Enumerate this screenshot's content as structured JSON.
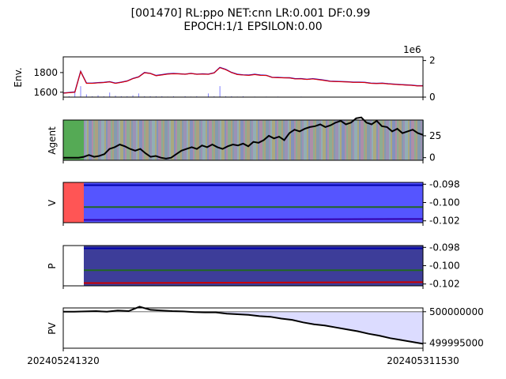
{
  "chart_data": {
    "type": "line",
    "title": "[001470] RL:ppo NET:cnn LR:0.001 DF:0.99",
    "subtitle": "EPOCH:1/1 EPSILON:0.00",
    "x_start_label": "202405241320",
    "x_end_label": "202405311530",
    "panels": [
      {
        "name": "env",
        "ylabel": "Env.",
        "left_ticks": [
          "1800",
          "1600"
        ],
        "right_ticks": [
          "2",
          "0"
        ],
        "right_exponent": "1e6",
        "series": [
          {
            "name": "price",
            "color": "#dd0000",
            "values": [
              1590,
              1595,
              1600,
              1810,
              1690,
              1690,
              1695,
              1698,
              1705,
              1690,
              1700,
              1712,
              1738,
              1755,
              1798,
              1790,
              1768,
              1776,
              1785,
              1788,
              1786,
              1782,
              1790,
              1782,
              1784,
              1782,
              1796,
              1850,
              1830,
              1800,
              1780,
              1775,
              1772,
              1780,
              1772,
              1770,
              1750,
              1748,
              1746,
              1745,
              1735,
              1736,
              1730,
              1735,
              1728,
              1720,
              1710,
              1708,
              1706,
              1704,
              1700,
              1700,
              1698,
              1690,
              1688,
              1690,
              1684,
              1680,
              1676,
              1673,
              1670,
              1664,
              1664
            ]
          },
          {
            "name": "volume",
            "color": "#8080ff",
            "values": [
              0.1,
              0.05,
              0.3,
              0.6,
              0.15,
              0.05,
              0.1,
              0.05,
              0.25,
              0.08,
              0.05,
              0.05,
              0.1,
              0.2,
              0.05,
              0.05,
              0.05,
              0.05,
              0.03,
              0.05,
              0.02,
              0.05,
              0.03,
              0.05,
              0.02,
              0.2,
              0.05,
              0.6,
              0.05,
              0.05,
              0.03,
              0.05,
              0.02,
              0.03,
              0.02,
              0.03,
              0.02,
              0.03,
              0.02,
              0.02,
              0.02,
              0.03,
              0.02,
              0.02,
              0.02,
              0.02,
              0.02,
              0.02,
              0.02,
              0.02,
              0.02,
              0.02,
              0.02,
              0.02,
              0.02,
              0.02,
              0.02,
              0.02,
              0.02,
              0.02,
              0.02,
              0.02,
              0.02
            ]
          }
        ],
        "ylim_left": [
          1550,
          1960
        ],
        "ylim_right": [
          0,
          2.2
        ]
      },
      {
        "name": "agent",
        "ylabel": "Agent",
        "right_ticks": [
          "25",
          "0"
        ],
        "series": [
          {
            "name": "position",
            "color": "#000000",
            "values": [
              0,
              0,
              0,
              0,
              1,
              3,
              1,
              2,
              4,
              10,
              12,
              15,
              13,
              10,
              8,
              10,
              5,
              1,
              2,
              0,
              -1,
              0,
              4,
              8,
              10,
              12,
              10,
              14,
              12,
              15,
              12,
              10,
              13,
              15,
              14,
              16,
              13,
              18,
              17,
              20,
              25,
              22,
              24,
              20,
              28,
              32,
              30,
              33,
              35,
              36,
              38,
              35,
              37,
              40,
              42,
              38,
              40,
              45,
              46,
              40,
              38,
              42,
              36,
              35,
              30,
              33,
              28,
              30,
              32,
              28,
              26
            ]
          }
        ],
        "ylim": [
          -3,
          43
        ]
      },
      {
        "name": "v",
        "ylabel": "V",
        "right_ticks": [
          "-0.098",
          "-0.100",
          "-0.102"
        ],
        "series": [
          {
            "name": "upper",
            "color": "#0000aa",
            "values": [
              -0.0981,
              -0.0981
            ]
          },
          {
            "name": "mid",
            "color": "#226622",
            "values": [
              -0.1005,
              -0.1005
            ]
          },
          {
            "name": "lower",
            "color": "#3300aa",
            "values": [
              -0.1019,
              -0.1018
            ]
          }
        ],
        "ylim": [
          -0.1022,
          -0.0978
        ]
      },
      {
        "name": "p",
        "ylabel": "P",
        "right_ticks": [
          "-0.098",
          "-0.100",
          "-0.102"
        ],
        "series": [
          {
            "name": "upper",
            "color": "#0000aa",
            "values": [
              -0.0981,
              -0.0981
            ]
          },
          {
            "name": "mid",
            "color": "#226622",
            "values": [
              -0.1005,
              -0.1005
            ]
          },
          {
            "name": "lower",
            "color": "#cc0000",
            "values": [
              -0.1019,
              -0.1018
            ]
          }
        ],
        "ylim": [
          -0.1022,
          -0.0978
        ]
      },
      {
        "name": "pv",
        "ylabel": "PV",
        "right_ticks": [
          "500000000",
          "499995000"
        ],
        "series": [
          {
            "name": "value",
            "color": "#000000",
            "values": [
              500000000,
              500000000,
              500000050,
              500000100,
              500000000,
              500000200,
              500000100,
              500000800,
              500000300,
              500000200,
              500000100,
              500000050,
              499999950,
              499999900,
              499999900,
              499999700,
              499999600,
              499999500,
              499999300,
              499999200,
              499998900,
              499998700,
              499998300,
              499998000,
              499997800,
              499997500,
              499997200,
              499996900,
              499996500,
              499996200,
              499995800,
              499995500,
              499995200,
              499994900
            ]
          }
        ],
        "baseline": 500000000,
        "ylim": [
          499994200,
          500000600
        ]
      }
    ]
  }
}
